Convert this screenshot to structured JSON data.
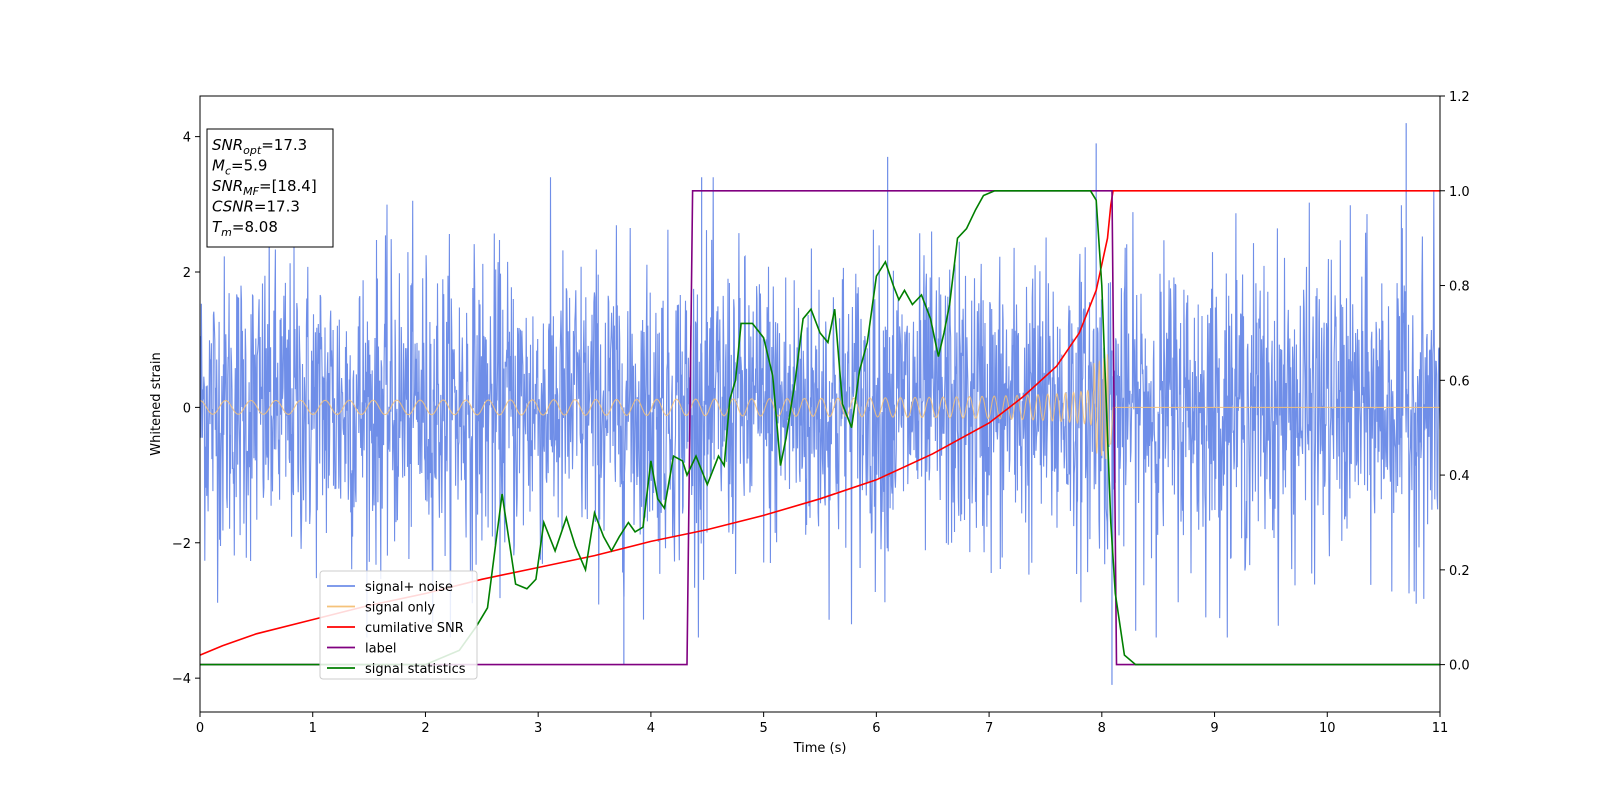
{
  "chart_data": {
    "type": "line",
    "xlabel": "Time (s)",
    "ylabel": "Whitened strain",
    "xlim": [
      0,
      11
    ],
    "ylim_left": [
      -4.5,
      4.6
    ],
    "ylim_right": [
      -0.1,
      1.2
    ],
    "x_ticks": [
      "0",
      "1",
      "2",
      "3",
      "4",
      "5",
      "6",
      "7",
      "8",
      "9",
      "10",
      "11"
    ],
    "y_left_ticks": [
      "−4",
      "−2",
      "0",
      "2",
      "4"
    ],
    "y_right_ticks": [
      "0.0",
      "0.2",
      "0.4",
      "0.6",
      "0.8",
      "1.0",
      "1.2"
    ],
    "legend_position": "lower left",
    "annotation": [
      {
        "main": "SNR",
        "sub": "opt",
        "value": "=17.3"
      },
      {
        "main": "M",
        "sub": "c",
        "value": "=5.9"
      },
      {
        "main": "SNR",
        "sub": "MF",
        "value": "=[18.4]"
      },
      {
        "main": "CSNR",
        "sub": "",
        "value": "=17.3"
      },
      {
        "main": "T",
        "sub": "m",
        "value": "=8.08"
      }
    ],
    "series": [
      {
        "name": "signal+ noise",
        "color": "#6f8ee8",
        "axis": "left",
        "description": "white noise, std≈1.1, with occasional spikes up to ~4.2",
        "noise_std": 1.1,
        "spikes": [
          {
            "x": 3.76,
            "y": -3.8
          },
          {
            "x": 8.09,
            "y": -4.1
          },
          {
            "x": 10.7,
            "y": 4.2
          },
          {
            "x": 7.95,
            "y": 3.9
          },
          {
            "x": 6.1,
            "y": 3.7
          },
          {
            "x": 4.45,
            "y": 3.4
          }
        ]
      },
      {
        "name": "signal only",
        "color": "#f5c27a",
        "axis": "left",
        "description": "chirp, amplitude grows from ~0.1 at t=0 to ~1.1 at merger t≈8.08, then zero",
        "merger_time": 8.08,
        "amplitude_start": 0.1,
        "amplitude_peak": 1.1
      },
      {
        "name": "cumilative SNR",
        "color": "#ff0000",
        "axis": "right",
        "x": [
          0.0,
          0.2,
          0.5,
          1.0,
          1.5,
          2.0,
          2.5,
          3.0,
          3.5,
          4.0,
          4.5,
          5.0,
          5.5,
          6.0,
          6.5,
          7.0,
          7.3,
          7.6,
          7.8,
          7.95,
          8.05,
          8.08,
          8.1,
          11.0
        ],
        "y": [
          0.02,
          0.04,
          0.065,
          0.095,
          0.125,
          0.15,
          0.18,
          0.205,
          0.23,
          0.26,
          0.285,
          0.315,
          0.35,
          0.39,
          0.445,
          0.51,
          0.565,
          0.63,
          0.7,
          0.79,
          0.9,
          0.97,
          1.0,
          1.0
        ]
      },
      {
        "name": "label",
        "color": "#800080",
        "axis": "right",
        "x": [
          0.0,
          4.32,
          4.37,
          8.09,
          8.13,
          11.0
        ],
        "y": [
          0.0,
          0.0,
          1.0,
          1.0,
          0.0,
          0.0
        ]
      },
      {
        "name": "signal statistics",
        "color": "#007f00",
        "axis": "right",
        "x": [
          0.0,
          0.5,
          1.0,
          1.5,
          2.0,
          2.3,
          2.45,
          2.55,
          2.68,
          2.8,
          2.9,
          2.98,
          3.05,
          3.15,
          3.25,
          3.33,
          3.42,
          3.5,
          3.58,
          3.65,
          3.72,
          3.8,
          3.86,
          3.93,
          4.0,
          4.06,
          4.12,
          4.2,
          4.28,
          4.32,
          4.4,
          4.5,
          4.6,
          4.65,
          4.7,
          4.75,
          4.8,
          4.9,
          5.0,
          5.08,
          5.15,
          5.2,
          5.28,
          5.35,
          5.42,
          5.5,
          5.57,
          5.63,
          5.7,
          5.78,
          5.85,
          5.92,
          6.0,
          6.08,
          6.15,
          6.2,
          6.25,
          6.32,
          6.4,
          6.48,
          6.55,
          6.6,
          6.65,
          6.72,
          6.8,
          6.88,
          6.95,
          7.05,
          7.2,
          7.4,
          7.6,
          7.8,
          7.9,
          7.95,
          8.0,
          8.04,
          8.08,
          8.12,
          8.2,
          8.3,
          8.5,
          9.0,
          10.0,
          11.0
        ],
        "y": [
          0.0,
          0.0,
          0.0,
          0.0,
          0.0,
          0.03,
          0.08,
          0.12,
          0.36,
          0.17,
          0.16,
          0.18,
          0.3,
          0.24,
          0.31,
          0.25,
          0.2,
          0.32,
          0.27,
          0.24,
          0.27,
          0.3,
          0.28,
          0.29,
          0.43,
          0.35,
          0.33,
          0.44,
          0.43,
          0.4,
          0.44,
          0.38,
          0.44,
          0.42,
          0.56,
          0.6,
          0.72,
          0.72,
          0.69,
          0.61,
          0.42,
          0.48,
          0.6,
          0.73,
          0.75,
          0.7,
          0.68,
          0.75,
          0.55,
          0.5,
          0.62,
          0.68,
          0.82,
          0.85,
          0.8,
          0.77,
          0.79,
          0.76,
          0.78,
          0.73,
          0.65,
          0.7,
          0.76,
          0.9,
          0.92,
          0.96,
          0.99,
          1.0,
          1.0,
          1.0,
          1.0,
          1.0,
          1.0,
          0.98,
          0.8,
          0.55,
          0.3,
          0.15,
          0.02,
          0.0,
          0.0,
          0.0,
          0.0,
          0.0
        ]
      }
    ]
  }
}
